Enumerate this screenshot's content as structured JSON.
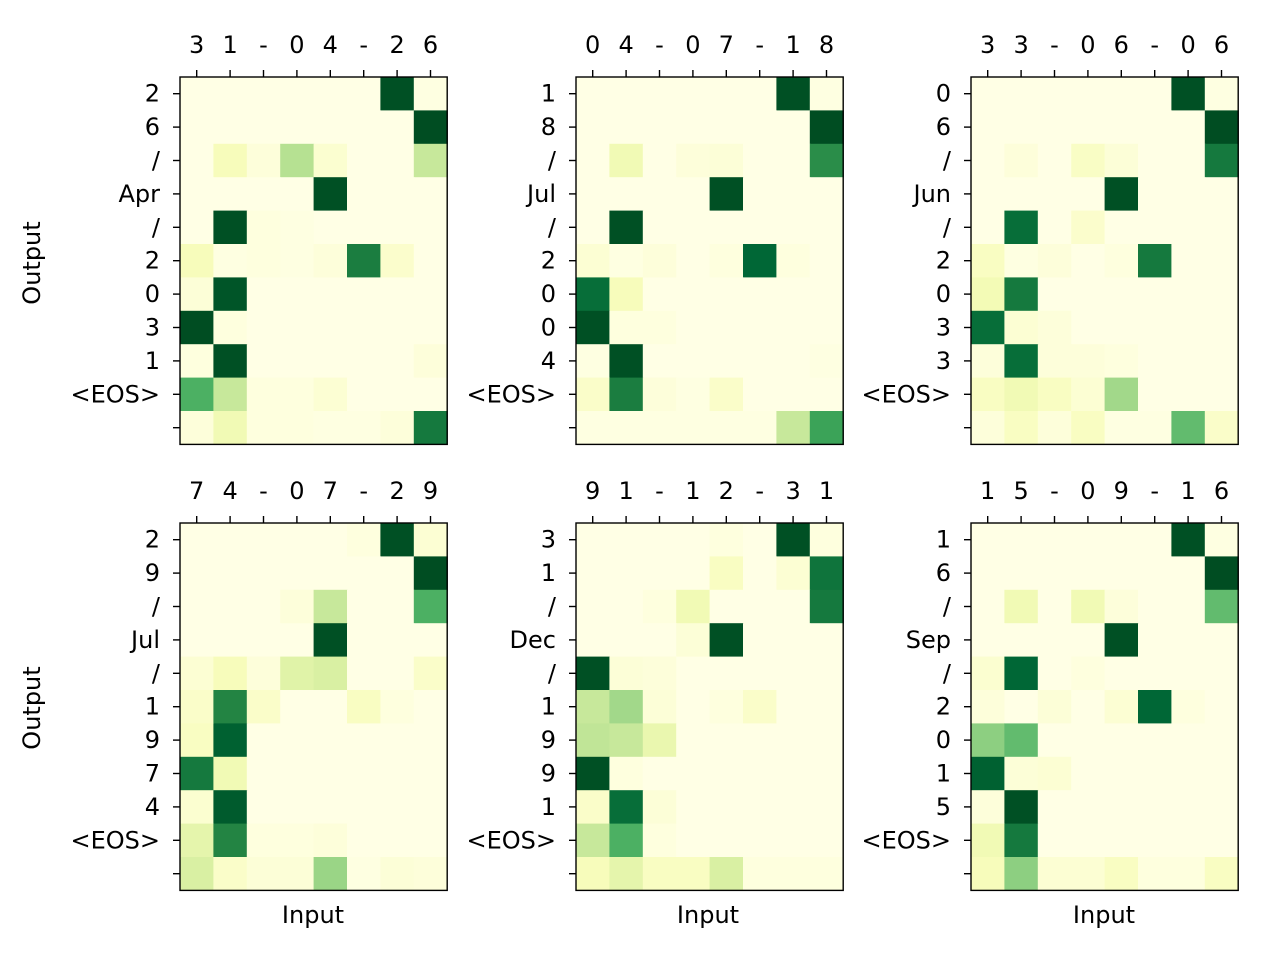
{
  "figure": {
    "ylabel": "Output",
    "xlabel": "Input",
    "colormap": "Greens-like",
    "colors": {
      "low": "#ffffe5",
      "high": "#00441b"
    }
  },
  "chart_data": [
    {
      "type": "heatmap",
      "input_tokens": [
        "3",
        "1",
        "-",
        "0",
        "4",
        "-",
        "2",
        "6"
      ],
      "output_tokens": [
        "2",
        "6",
        "/",
        "Apr",
        "/",
        "2",
        "0",
        "3",
        "1",
        "<EOS>",
        ""
      ],
      "values": [
        [
          0.0,
          0.0,
          0.0,
          0.0,
          0.0,
          0.0,
          0.96,
          0.01
        ],
        [
          0.0,
          0.0,
          0.0,
          0.0,
          0.0,
          0.0,
          0.0,
          0.97
        ],
        [
          0.0,
          0.12,
          0.03,
          0.35,
          0.06,
          0.0,
          0.0,
          0.3
        ],
        [
          0.0,
          0.0,
          0.0,
          0.0,
          0.96,
          0.0,
          0.0,
          0.0
        ],
        [
          0.0,
          0.96,
          0.02,
          0.01,
          0.0,
          0.0,
          0.0,
          0.0
        ],
        [
          0.12,
          0.01,
          0.02,
          0.01,
          0.03,
          0.78,
          0.07,
          0.0
        ],
        [
          0.04,
          0.94,
          0.0,
          0.0,
          0.0,
          0.0,
          0.0,
          0.0
        ],
        [
          0.97,
          0.02,
          0.0,
          0.0,
          0.0,
          0.0,
          0.0,
          0.0
        ],
        [
          0.02,
          0.96,
          0.0,
          0.0,
          0.0,
          0.0,
          0.0,
          0.03
        ],
        [
          0.6,
          0.3,
          0.02,
          0.02,
          0.05,
          0.0,
          0.0,
          0.0
        ],
        [
          0.03,
          0.15,
          0.02,
          0.02,
          0.01,
          0.01,
          0.03,
          0.8
        ]
      ]
    },
    {
      "type": "heatmap",
      "input_tokens": [
        "0",
        "4",
        "-",
        "0",
        "7",
        "-",
        "1",
        "8"
      ],
      "output_tokens": [
        "1",
        "8",
        "/",
        "Jul",
        "/",
        "2",
        "0",
        "0",
        "4",
        "<EOS>",
        ""
      ],
      "values": [
        [
          0.0,
          0.0,
          0.0,
          0.0,
          0.0,
          0.0,
          0.96,
          0.01
        ],
        [
          0.0,
          0.0,
          0.0,
          0.0,
          0.0,
          0.0,
          0.0,
          0.97
        ],
        [
          0.0,
          0.15,
          0.0,
          0.03,
          0.04,
          0.0,
          0.0,
          0.72
        ],
        [
          0.0,
          0.0,
          0.0,
          0.0,
          0.96,
          0.0,
          0.0,
          0.0
        ],
        [
          0.0,
          0.96,
          0.0,
          0.0,
          0.0,
          0.0,
          0.0,
          0.0
        ],
        [
          0.05,
          0.01,
          0.03,
          0.0,
          0.02,
          0.88,
          0.02,
          0.0
        ],
        [
          0.85,
          0.12,
          0.0,
          0.0,
          0.0,
          0.0,
          0.0,
          0.0
        ],
        [
          0.96,
          0.02,
          0.02,
          0.0,
          0.0,
          0.0,
          0.0,
          0.0
        ],
        [
          0.01,
          0.96,
          0.0,
          0.0,
          0.0,
          0.0,
          0.0,
          0.01
        ],
        [
          0.08,
          0.78,
          0.03,
          0.01,
          0.08,
          0.0,
          0.0,
          0.0
        ],
        [
          0.01,
          0.01,
          0.01,
          0.01,
          0.01,
          0.01,
          0.3,
          0.65
        ]
      ]
    },
    {
      "type": "heatmap",
      "input_tokens": [
        "3",
        "3",
        "-",
        "0",
        "6",
        "-",
        "0",
        "6"
      ],
      "output_tokens": [
        "0",
        "6",
        "/",
        "Jun",
        "/",
        "2",
        "0",
        "3",
        "3",
        "<EOS>",
        ""
      ],
      "values": [
        [
          0.0,
          0.0,
          0.0,
          0.0,
          0.0,
          0.0,
          0.96,
          0.01
        ],
        [
          0.0,
          0.0,
          0.0,
          0.0,
          0.0,
          0.0,
          0.0,
          0.97
        ],
        [
          0.0,
          0.03,
          0.0,
          0.09,
          0.04,
          0.0,
          0.0,
          0.8
        ],
        [
          0.0,
          0.0,
          0.0,
          0.0,
          0.96,
          0.0,
          0.0,
          0.0
        ],
        [
          0.0,
          0.85,
          0.0,
          0.07,
          0.0,
          0.0,
          0.0,
          0.0
        ],
        [
          0.1,
          0.01,
          0.03,
          0.0,
          0.02,
          0.8,
          0.0,
          0.0
        ],
        [
          0.14,
          0.8,
          0.0,
          0.0,
          0.0,
          0.0,
          0.0,
          0.0
        ],
        [
          0.85,
          0.05,
          0.03,
          0.0,
          0.0,
          0.0,
          0.0,
          0.0
        ],
        [
          0.03,
          0.85,
          0.03,
          0.03,
          0.02,
          0.0,
          0.0,
          0.0
        ],
        [
          0.1,
          0.15,
          0.1,
          0.05,
          0.4,
          0.0,
          0.0,
          0.0
        ],
        [
          0.03,
          0.1,
          0.03,
          0.1,
          0.01,
          0.01,
          0.55,
          0.08
        ]
      ]
    },
    {
      "type": "heatmap",
      "input_tokens": [
        "7",
        "4",
        "-",
        "0",
        "7",
        "-",
        "2",
        "9"
      ],
      "output_tokens": [
        "2",
        "9",
        "/",
        "Jul",
        "/",
        "1",
        "9",
        "7",
        "4",
        "<EOS>",
        ""
      ],
      "values": [
        [
          0.0,
          0.0,
          0.0,
          0.0,
          0.0,
          0.02,
          0.96,
          0.05
        ],
        [
          0.0,
          0.0,
          0.0,
          0.0,
          0.0,
          0.0,
          0.0,
          0.97
        ],
        [
          0.0,
          0.0,
          0.0,
          0.03,
          0.3,
          0.0,
          0.0,
          0.6
        ],
        [
          0.0,
          0.0,
          0.0,
          0.0,
          0.96,
          0.0,
          0.0,
          0.0
        ],
        [
          0.05,
          0.12,
          0.03,
          0.22,
          0.25,
          0.0,
          0.0,
          0.08
        ],
        [
          0.08,
          0.75,
          0.08,
          0.0,
          0.0,
          0.1,
          0.02,
          0.0
        ],
        [
          0.1,
          0.9,
          0.0,
          0.0,
          0.0,
          0.0,
          0.0,
          0.0
        ],
        [
          0.8,
          0.15,
          0.0,
          0.0,
          0.0,
          0.0,
          0.0,
          0.0
        ],
        [
          0.06,
          0.92,
          0.0,
          0.0,
          0.0,
          0.0,
          0.0,
          0.0
        ],
        [
          0.2,
          0.75,
          0.02,
          0.02,
          0.03,
          0.0,
          0.0,
          0.0
        ],
        [
          0.25,
          0.08,
          0.04,
          0.04,
          0.42,
          0.01,
          0.04,
          0.03
        ]
      ]
    },
    {
      "type": "heatmap",
      "input_tokens": [
        "9",
        "1",
        "-",
        "1",
        "2",
        "-",
        "3",
        "1"
      ],
      "output_tokens": [
        "3",
        "1",
        "/",
        "Dec",
        "/",
        "1",
        "9",
        "9",
        "1",
        "<EOS>",
        ""
      ],
      "values": [
        [
          0.0,
          0.0,
          0.0,
          0.0,
          0.02,
          0.0,
          0.96,
          0.02
        ],
        [
          0.0,
          0.0,
          0.0,
          0.0,
          0.1,
          0.0,
          0.05,
          0.82
        ],
        [
          0.0,
          0.0,
          0.02,
          0.15,
          0.0,
          0.0,
          0.0,
          0.8
        ],
        [
          0.0,
          0.0,
          0.0,
          0.04,
          0.96,
          0.0,
          0.0,
          0.0
        ],
        [
          0.96,
          0.04,
          0.03,
          0.0,
          0.0,
          0.0,
          0.0,
          0.0
        ],
        [
          0.3,
          0.4,
          0.04,
          0.0,
          0.02,
          0.08,
          0.0,
          0.0
        ],
        [
          0.32,
          0.3,
          0.18,
          0.0,
          0.0,
          0.0,
          0.0,
          0.0
        ],
        [
          0.96,
          0.02,
          0.0,
          0.0,
          0.0,
          0.0,
          0.0,
          0.0
        ],
        [
          0.08,
          0.85,
          0.04,
          0.0,
          0.0,
          0.0,
          0.0,
          0.0
        ],
        [
          0.3,
          0.6,
          0.02,
          0.0,
          0.0,
          0.0,
          0.0,
          0.0
        ],
        [
          0.12,
          0.2,
          0.1,
          0.1,
          0.25,
          0.02,
          0.02,
          0.02
        ]
      ]
    },
    {
      "type": "heatmap",
      "input_tokens": [
        "1",
        "5",
        "-",
        "0",
        "9",
        "-",
        "1",
        "6"
      ],
      "output_tokens": [
        "1",
        "6",
        "/",
        "Sep",
        "/",
        "2",
        "0",
        "1",
        "5",
        "<EOS>",
        ""
      ],
      "values": [
        [
          0.0,
          0.0,
          0.0,
          0.0,
          0.0,
          0.0,
          0.96,
          0.01
        ],
        [
          0.0,
          0.0,
          0.0,
          0.0,
          0.0,
          0.0,
          0.0,
          0.97
        ],
        [
          0.0,
          0.15,
          0.0,
          0.15,
          0.03,
          0.0,
          0.0,
          0.55
        ],
        [
          0.0,
          0.0,
          0.0,
          0.0,
          0.96,
          0.0,
          0.0,
          0.0
        ],
        [
          0.06,
          0.88,
          0.0,
          0.02,
          0.0,
          0.0,
          0.0,
          0.0
        ],
        [
          0.03,
          0.0,
          0.04,
          0.0,
          0.05,
          0.88,
          0.02,
          0.0
        ],
        [
          0.45,
          0.55,
          0.0,
          0.0,
          0.0,
          0.0,
          0.0,
          0.0
        ],
        [
          0.9,
          0.04,
          0.05,
          0.0,
          0.0,
          0.0,
          0.0,
          0.0
        ],
        [
          0.03,
          0.96,
          0.0,
          0.0,
          0.0,
          0.0,
          0.0,
          0.0
        ],
        [
          0.15,
          0.8,
          0.0,
          0.0,
          0.0,
          0.0,
          0.0,
          0.0
        ],
        [
          0.12,
          0.45,
          0.05,
          0.05,
          0.1,
          0.02,
          0.02,
          0.1
        ]
      ]
    }
  ]
}
